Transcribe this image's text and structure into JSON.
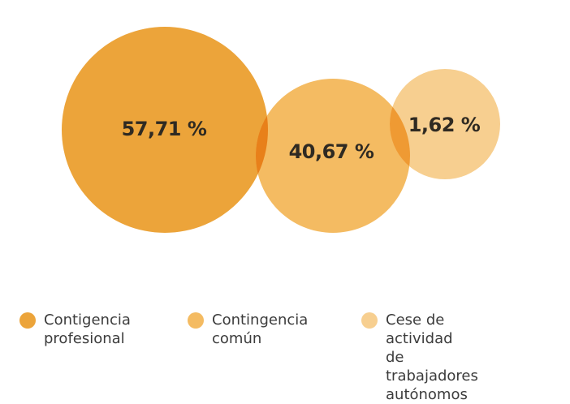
{
  "chart_data": {
    "type": "bubble",
    "title": "",
    "series": [
      {
        "name": "Contigencia profesional",
        "value": 57.71,
        "label": "57,71 %",
        "color": "#eca43a"
      },
      {
        "name": "Contingencia común",
        "value": 40.67,
        "label": "40,67 %",
        "color": "#f4bb62"
      },
      {
        "name": "Cese de actividad de trabajadores autónomos",
        "value": 1.62,
        "label": "1,62 %",
        "color": "#f7cf90"
      }
    ],
    "overlap_colors": [
      "#e8801a",
      "#ef9a33"
    ]
  },
  "legend": {
    "items": [
      {
        "lines": [
          "Contigencia",
          "profesional"
        ],
        "color": "#eca43a"
      },
      {
        "lines": [
          "Contingencia",
          "común"
        ],
        "color": "#f4bb62"
      },
      {
        "lines": [
          "Cese de actividad",
          "de trabajadores",
          "autónomos"
        ],
        "color": "#f7cf90"
      }
    ]
  }
}
